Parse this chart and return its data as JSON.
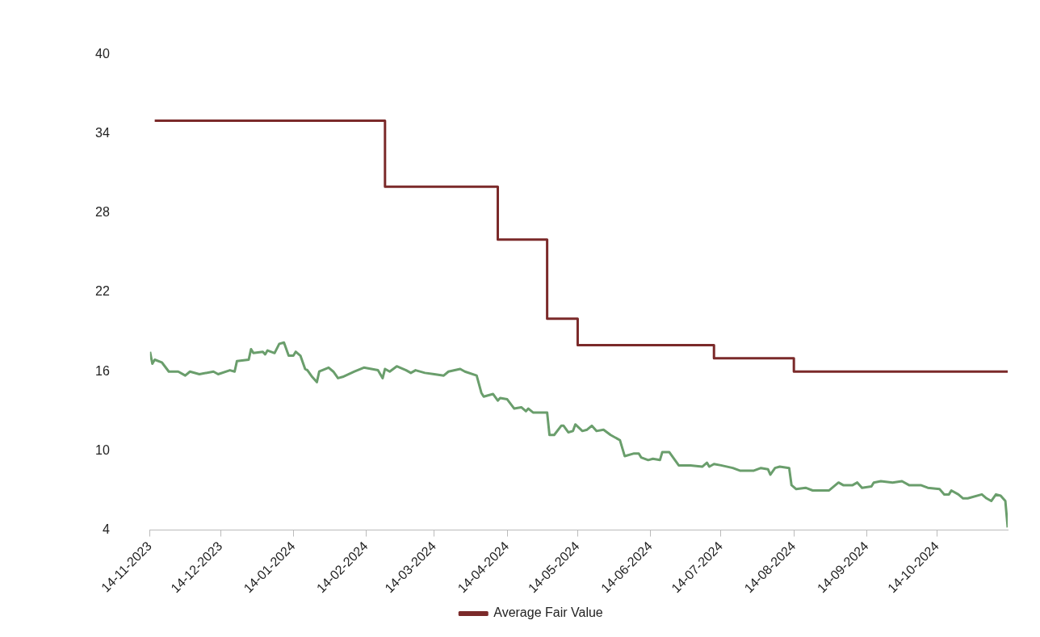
{
  "chart_data": {
    "type": "line",
    "legend": "bottom",
    "grid": false,
    "marker": "none",
    "line_style": "solid",
    "xlim": [
      "2023-11-14",
      "2024-11-13"
    ],
    "xticks": [
      {
        "value": "2023-11-14",
        "label": "14-11-2023"
      },
      {
        "value": "2023-12-14",
        "label": "14-12-2023"
      },
      {
        "value": "2024-01-14",
        "label": "14-01-2024"
      },
      {
        "value": "2024-02-14",
        "label": "14-02-2024"
      },
      {
        "value": "2024-03-14",
        "label": "14-03-2024"
      },
      {
        "value": "2024-04-14",
        "label": "14-04-2024"
      },
      {
        "value": "2024-05-14",
        "label": "14-05-2024"
      },
      {
        "value": "2024-06-14",
        "label": "14-06-2024"
      },
      {
        "value": "2024-07-14",
        "label": "14-07-2024"
      },
      {
        "value": "2024-08-14",
        "label": "14-08-2024"
      },
      {
        "value": "2024-09-14",
        "label": "14-09-2024"
      },
      {
        "value": "2024-10-14",
        "label": "14-10-2024"
      }
    ],
    "ylim": [
      4,
      40
    ],
    "yticks": [
      4,
      10,
      16,
      22,
      28,
      34,
      40
    ],
    "series": [
      {
        "type": "line",
        "color": "#6a9e6c",
        "x": [
          "2023-11-14",
          "2023-11-15",
          "2023-11-16",
          "2023-11-19",
          "2023-11-22",
          "2023-11-26",
          "2023-11-29",
          "2023-12-01",
          "2023-12-05",
          "2023-12-11",
          "2023-12-13",
          "2023-12-18",
          "2023-12-20",
          "2023-12-21",
          "2023-12-26",
          "2023-12-27",
          "2023-12-28",
          "2024-01-01",
          "2024-01-02",
          "2024-01-03",
          "2024-01-06",
          "2024-01-08",
          "2024-01-10",
          "2024-01-12",
          "2024-01-14",
          "2024-01-15",
          "2024-01-17",
          "2024-01-19",
          "2024-01-20",
          "2024-01-22",
          "2024-01-24",
          "2024-01-25",
          "2024-01-29",
          "2024-01-31",
          "2024-02-02",
          "2024-02-04",
          "2024-02-09",
          "2024-02-13",
          "2024-02-19",
          "2024-02-21",
          "2024-02-22",
          "2024-02-24",
          "2024-02-27",
          "2024-03-02",
          "2024-03-04",
          "2024-03-06",
          "2024-03-10",
          "2024-03-14",
          "2024-03-18",
          "2024-03-20",
          "2024-03-25",
          "2024-03-27",
          "2024-04-01",
          "2024-04-03",
          "2024-04-04",
          "2024-04-08",
          "2024-04-10",
          "2024-04-11",
          "2024-04-14",
          "2024-04-17",
          "2024-04-20",
          "2024-04-22",
          "2024-04-23",
          "2024-04-25",
          "2024-05-01",
          "2024-05-02",
          "2024-05-04",
          "2024-05-07",
          "2024-05-08",
          "2024-05-10",
          "2024-05-12",
          "2024-05-13",
          "2024-05-16",
          "2024-05-18",
          "2024-05-20",
          "2024-05-22",
          "2024-05-25",
          "2024-05-28",
          "2024-05-31",
          "2024-06-01",
          "2024-06-03",
          "2024-06-07",
          "2024-06-09",
          "2024-06-10",
          "2024-06-13",
          "2024-06-15",
          "2024-06-18",
          "2024-06-19",
          "2024-06-22",
          "2024-06-26",
          "2024-07-01",
          "2024-07-06",
          "2024-07-08",
          "2024-07-09",
          "2024-07-11",
          "2024-07-14",
          "2024-07-19",
          "2024-07-22",
          "2024-07-28",
          "2024-07-31",
          "2024-08-03",
          "2024-08-04",
          "2024-08-06",
          "2024-08-08",
          "2024-08-12",
          "2024-08-13",
          "2024-08-15",
          "2024-08-19",
          "2024-08-22",
          "2024-08-29",
          "2024-09-02",
          "2024-09-04",
          "2024-09-08",
          "2024-09-10",
          "2024-09-12",
          "2024-09-16",
          "2024-09-17",
          "2024-09-20",
          "2024-09-25",
          "2024-09-29",
          "2024-10-02",
          "2024-10-07",
          "2024-10-10",
          "2024-10-15",
          "2024-10-17",
          "2024-10-19",
          "2024-10-20",
          "2024-10-23",
          "2024-10-25",
          "2024-10-27",
          "2024-11-02",
          "2024-11-04",
          "2024-11-06",
          "2024-11-08",
          "2024-11-10",
          "2024-11-12",
          "2024-11-13"
        ],
        "values": [
          17.5,
          16.6,
          16.9,
          16.7,
          16.0,
          16.0,
          15.7,
          16.0,
          15.8,
          16.0,
          15.8,
          16.1,
          16.0,
          16.8,
          16.9,
          17.7,
          17.4,
          17.5,
          17.3,
          17.6,
          17.4,
          18.1,
          18.2,
          17.2,
          17.2,
          17.5,
          17.2,
          16.2,
          16.1,
          15.6,
          15.2,
          16.0,
          16.3,
          16.0,
          15.5,
          15.6,
          16.0,
          16.3,
          16.1,
          15.5,
          16.2,
          16.0,
          16.4,
          16.1,
          15.9,
          16.1,
          15.9,
          15.8,
          15.7,
          16.0,
          16.2,
          16.0,
          15.7,
          14.4,
          14.1,
          14.3,
          13.8,
          14.0,
          13.9,
          13.2,
          13.3,
          13.0,
          13.2,
          12.9,
          12.9,
          11.2,
          11.2,
          11.9,
          11.9,
          11.4,
          11.5,
          12.0,
          11.5,
          11.6,
          11.9,
          11.5,
          11.6,
          11.2,
          10.9,
          10.8,
          9.6,
          9.8,
          9.8,
          9.5,
          9.3,
          9.4,
          9.3,
          9.9,
          9.9,
          8.9,
          8.9,
          8.8,
          9.1,
          8.8,
          9.0,
          8.9,
          8.7,
          8.5,
          8.5,
          8.7,
          8.6,
          8.2,
          8.7,
          8.8,
          8.7,
          7.4,
          7.1,
          7.2,
          7.0,
          7.0,
          7.6,
          7.4,
          7.4,
          7.6,
          7.2,
          7.3,
          7.6,
          7.7,
          7.6,
          7.7,
          7.4,
          7.4,
          7.2,
          7.1,
          6.7,
          6.7,
          7.0,
          6.7,
          6.4,
          6.4,
          6.7,
          6.4,
          6.2,
          6.7,
          6.6,
          6.2,
          4.2
        ]
      },
      {
        "type": "step",
        "name": "Average Fair Value",
        "color": "#7b2a2a",
        "x": [
          "2023-11-16",
          "2024-02-22",
          "2024-04-10",
          "2024-05-01",
          "2024-05-14",
          "2024-07-11",
          "2024-08-14",
          "2024-11-13"
        ],
        "values": [
          35,
          30,
          26,
          20,
          18,
          17,
          16,
          16
        ]
      }
    ]
  }
}
